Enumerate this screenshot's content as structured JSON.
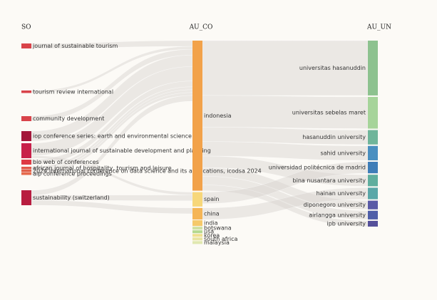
{
  "chart_data": {
    "type": "sankey",
    "columns": [
      {
        "title": "SO",
        "nodes": [
          {
            "name": "journal of sustainable tourism",
            "value": 2,
            "color": "#d9434a"
          },
          {
            "name": "tourism review international",
            "value": 1,
            "color": "#d9434a"
          },
          {
            "name": "community development",
            "value": 2,
            "color": "#d9434a"
          },
          {
            "name": "iop conference series: earth and environmental science",
            "value": 4,
            "color": "#a3173b"
          },
          {
            "name": "international journal of sustainable development and planning",
            "value": 6,
            "color": "#c8204a"
          },
          {
            "name": "bio web of conferences",
            "value": 2,
            "color": "#de3a44"
          },
          {
            "name": "african journal of hospitality, tourism and leisure",
            "value": 1,
            "color": "#e05a4a"
          },
          {
            "name": "2024 international conference on data science and its applications, icodsa 2024",
            "value": 1,
            "color": "#e0604a"
          },
          {
            "name": "aip conference proceedings",
            "value": 1,
            "color": "#e66a4c"
          },
          {
            "name": "sustainability (switzerland)",
            "value": 6,
            "color": "#b81d40"
          }
        ]
      },
      {
        "title": "AU_CO",
        "nodes": [
          {
            "name": "indonesia",
            "value": 52,
            "color": "#f2a24a"
          },
          {
            "name": "spain",
            "value": 5,
            "color": "#f7d77a"
          },
          {
            "name": "china",
            "value": 4,
            "color": "#f5b556"
          },
          {
            "name": "india",
            "value": 2,
            "color": "#f5c96a"
          },
          {
            "name": "botswana",
            "value": 1,
            "color": "#cfe0a0"
          },
          {
            "name": "usa",
            "value": 1,
            "color": "#b5d98e"
          },
          {
            "name": "korea",
            "value": 1,
            "color": "#f0e090"
          },
          {
            "name": "south africa",
            "value": 1,
            "color": "#e8e4a0"
          },
          {
            "name": "malaysia",
            "value": 1,
            "color": "#e0e8b0"
          }
        ]
      },
      {
        "title": "AU_UN",
        "nodes": [
          {
            "name": "universitas hasanuddin",
            "value": 19,
            "color": "#8dc28f"
          },
          {
            "name": "universitas sebelas maret",
            "value": 11,
            "color": "#a6d49a"
          },
          {
            "name": "hasanuddin university",
            "value": 5,
            "color": "#6fb59a"
          },
          {
            "name": "sahid university",
            "value": 5,
            "color": "#4a8fc0"
          },
          {
            "name": "universidad politécnica de madrid",
            "value": 4,
            "color": "#3e7db8"
          },
          {
            "name": "bina nusantara university",
            "value": 4,
            "color": "#5fae9e"
          },
          {
            "name": "hainan university",
            "value": 4,
            "color": "#5aa7a8"
          },
          {
            "name": "diponegoro university",
            "value": 3,
            "color": "#5a5aa6"
          },
          {
            "name": "airlangga university",
            "value": 3,
            "color": "#4f5ea8"
          },
          {
            "name": "ipb university",
            "value": 2,
            "color": "#55509a"
          }
        ]
      }
    ],
    "links": [
      {
        "from": "journal of sustainable tourism",
        "to": "indonesia",
        "value": 2
      },
      {
        "from": "tourism review international",
        "to": "indonesia",
        "value": 1
      },
      {
        "from": "community development",
        "to": "indonesia",
        "value": 2
      },
      {
        "from": "iop conference series: earth and environmental science",
        "to": "indonesia",
        "value": 4
      },
      {
        "from": "international journal of sustainable development and planning",
        "to": "indonesia",
        "value": 5
      },
      {
        "from": "international journal of sustainable development and planning",
        "to": "spain",
        "value": 1
      },
      {
        "from": "bio web of conferences",
        "to": "indonesia",
        "value": 2
      },
      {
        "from": "african journal of hospitality, tourism and leisure",
        "to": "indonesia",
        "value": 1
      },
      {
        "from": "2024 international conference on data science and its applications, icodsa 2024",
        "to": "indonesia",
        "value": 1
      },
      {
        "from": "aip conference proceedings",
        "to": "indonesia",
        "value": 1
      },
      {
        "from": "sustainability (switzerland)",
        "to": "indonesia",
        "value": 2
      },
      {
        "from": "sustainability (switzerland)",
        "to": "spain",
        "value": 2
      },
      {
        "from": "sustainability (switzerland)",
        "to": "china",
        "value": 2
      },
      {
        "from": "indonesia",
        "to": "universitas hasanuddin",
        "value": 19
      },
      {
        "from": "indonesia",
        "to": "universitas sebelas maret",
        "value": 11
      },
      {
        "from": "indonesia",
        "to": "hasanuddin university",
        "value": 5
      },
      {
        "from": "indonesia",
        "to": "sahid university",
        "value": 5
      },
      {
        "from": "indonesia",
        "to": "bina nusantara university",
        "value": 4
      },
      {
        "from": "indonesia",
        "to": "diponegoro university",
        "value": 3
      },
      {
        "from": "indonesia",
        "to": "airlangga university",
        "value": 3
      },
      {
        "from": "indonesia",
        "to": "ipb university",
        "value": 2
      },
      {
        "from": "spain",
        "to": "universidad politécnica de madrid",
        "value": 4
      },
      {
        "from": "china",
        "to": "hainan university",
        "value": 4
      }
    ]
  }
}
